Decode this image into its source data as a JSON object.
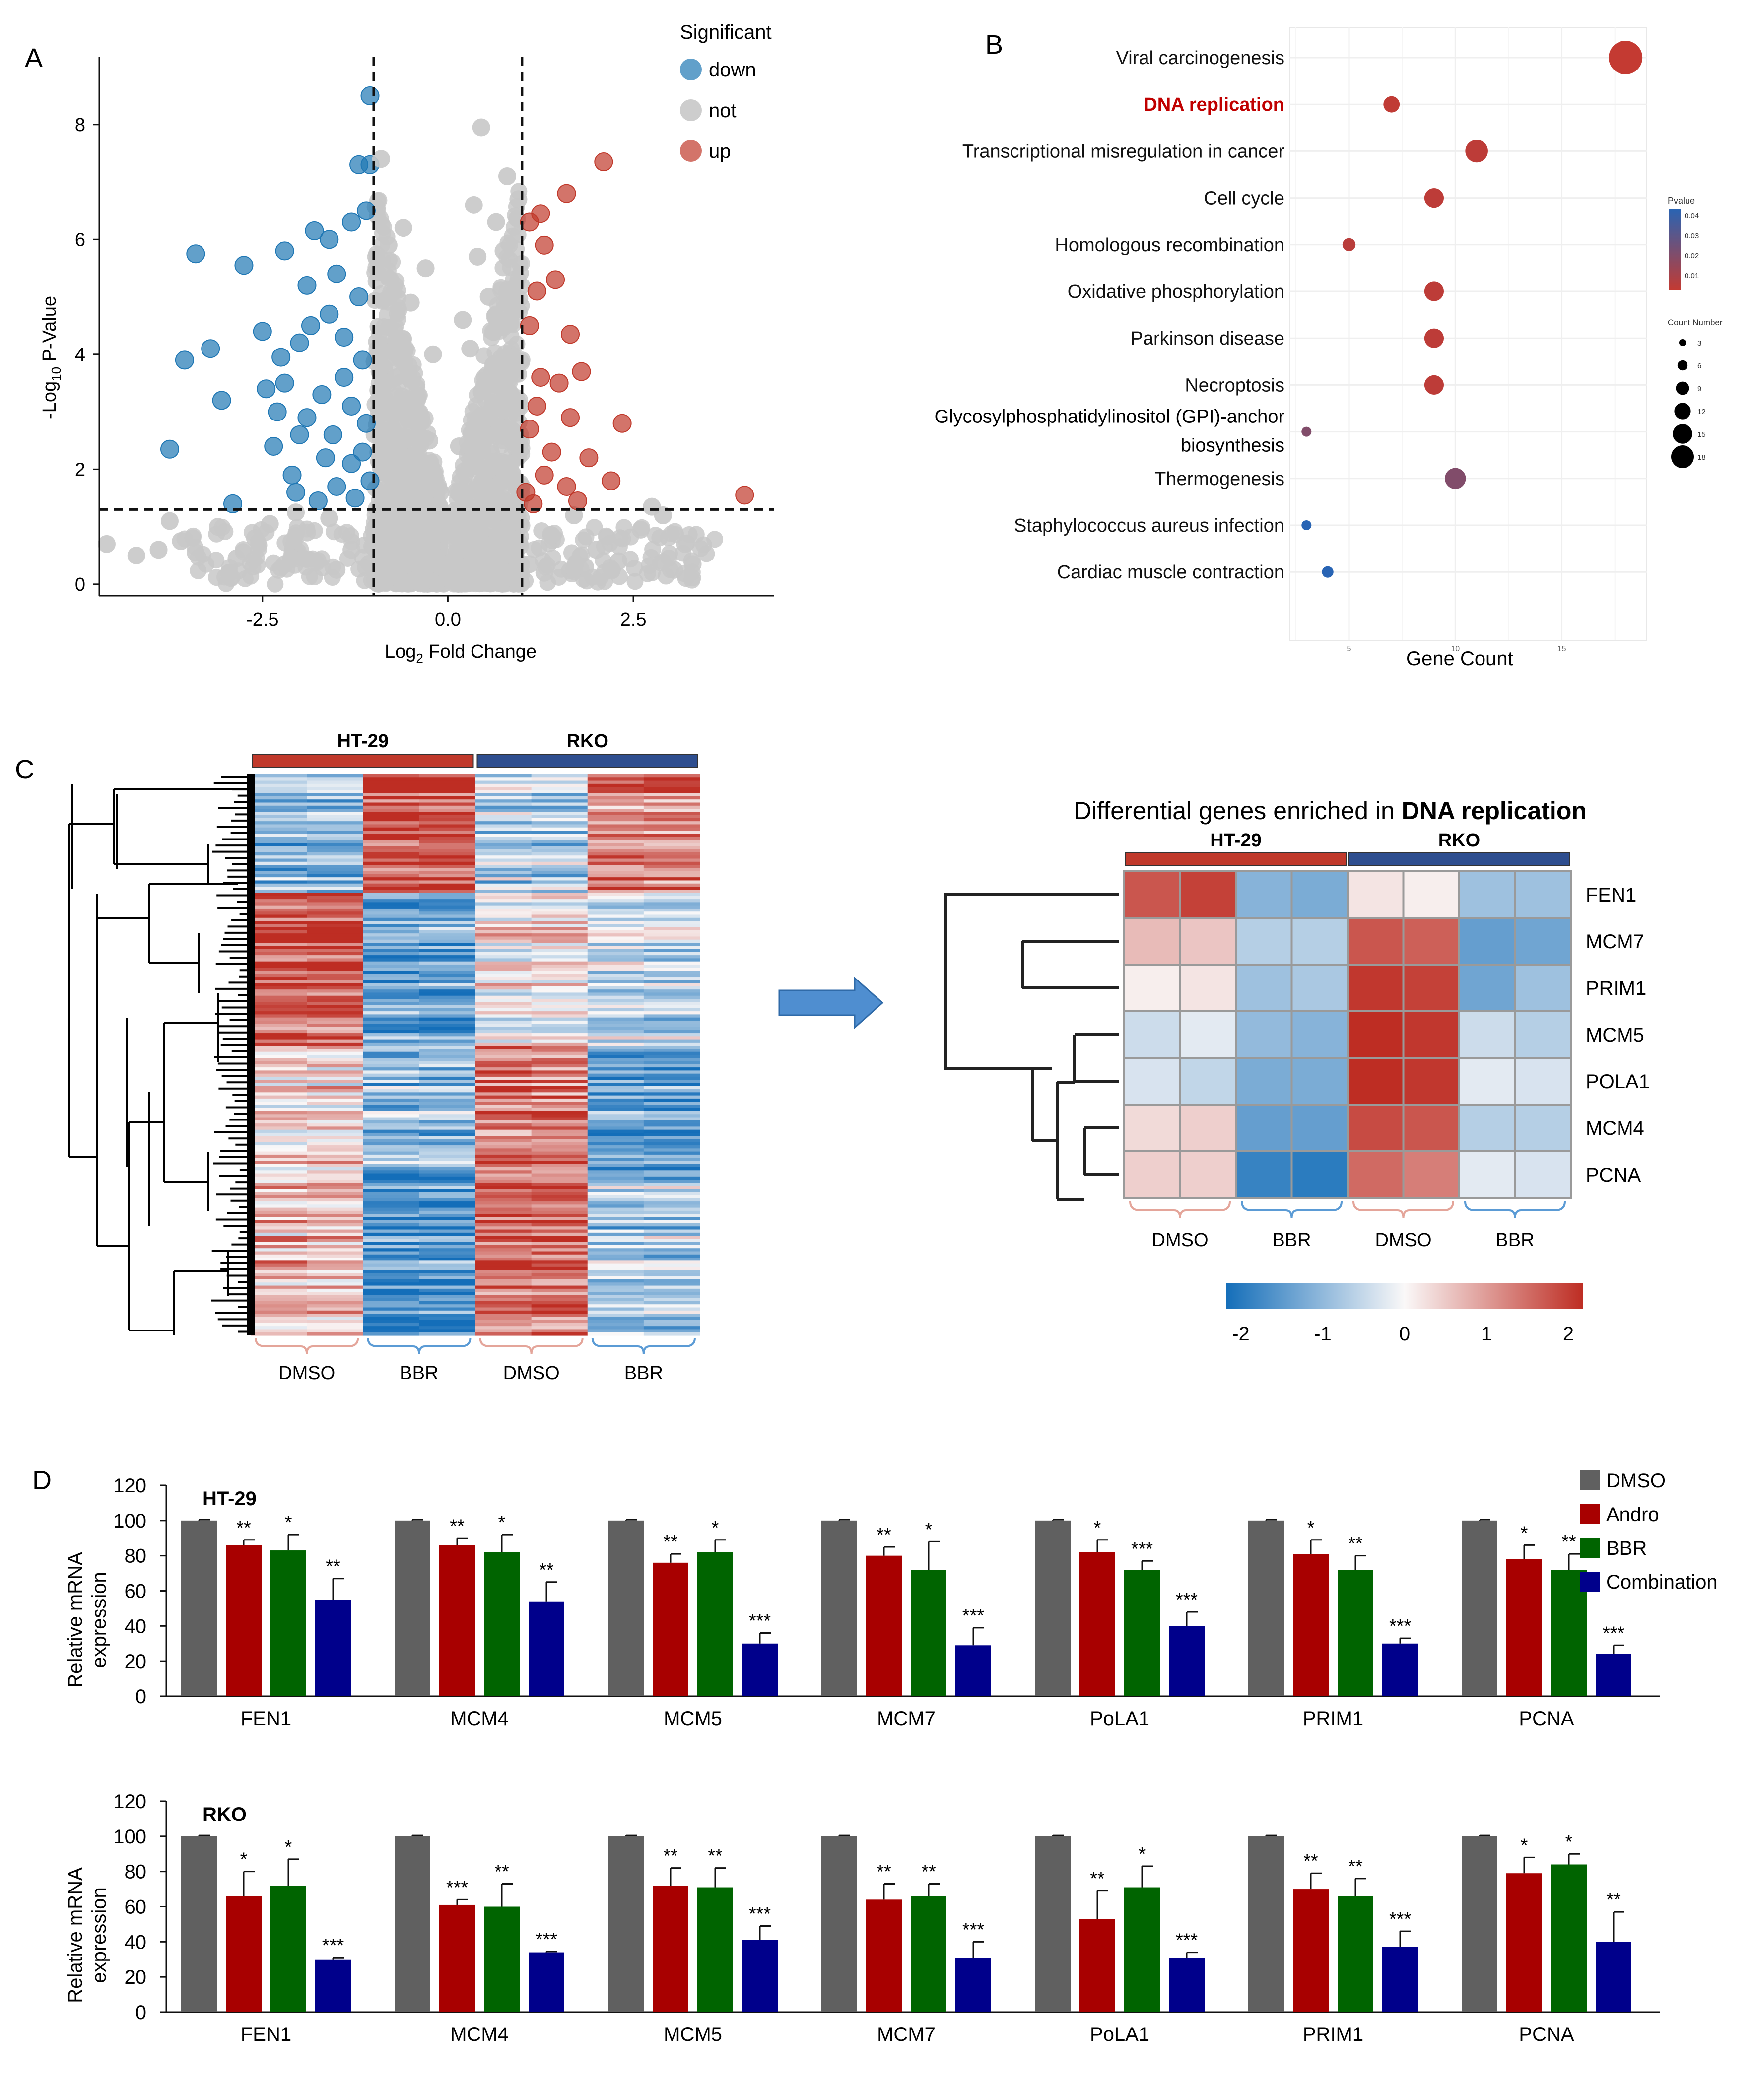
{
  "panels": {
    "a": "A",
    "b": "B",
    "c": "C",
    "d": "D"
  },
  "colors": {
    "down": "#1f77b4",
    "not": "#c8c8c8",
    "up": "#c0392b",
    "dmso": "#606060",
    "andro": "#a80000",
    "bbr": "#006400",
    "combination": "#00008b"
  },
  "chart_data": [
    {
      "id": "volcano",
      "type": "scatter",
      "xlabel": "Log2 Fold Change",
      "ylabel": "-Log10 P-Value",
      "x_ticks": [
        "-2.5",
        "0.0",
        "2.5"
      ],
      "y_ticks": [
        "0",
        "2",
        "4",
        "6",
        "8"
      ],
      "xlim": [
        -4.7,
        4.4
      ],
      "ylim": [
        -0.2,
        9.0
      ],
      "thresholds": {
        "x": [
          -1,
          1
        ],
        "y": 1.3
      },
      "legend": {
        "title": "Significant",
        "items": [
          "down",
          "not",
          "up"
        ],
        "position": "top-right"
      },
      "series": [
        {
          "name": "down",
          "color": "#1f77b4",
          "points": [
            [
              -1.05,
              8.5
            ],
            [
              -1.2,
              7.3
            ],
            [
              -1.05,
              7.3
            ],
            [
              -3.4,
              5.75
            ],
            [
              -2.75,
              5.55
            ],
            [
              -2.2,
              5.8
            ],
            [
              -1.8,
              6.15
            ],
            [
              -1.6,
              6.0
            ],
            [
              -1.3,
              6.3
            ],
            [
              -1.1,
              6.5
            ],
            [
              -3.2,
              4.1
            ],
            [
              -3.55,
              3.9
            ],
            [
              -2.5,
              4.4
            ],
            [
              -2.25,
              3.95
            ],
            [
              -2.0,
              4.2
            ],
            [
              -1.85,
              4.5
            ],
            [
              -1.6,
              4.7
            ],
            [
              -1.4,
              4.3
            ],
            [
              -1.2,
              5.0
            ],
            [
              -3.05,
              3.2
            ],
            [
              -2.45,
              3.4
            ],
            [
              -2.2,
              3.5
            ],
            [
              -1.7,
              3.3
            ],
            [
              -1.4,
              3.6
            ],
            [
              -1.15,
              3.9
            ],
            [
              -3.75,
              2.35
            ],
            [
              -2.35,
              2.4
            ],
            [
              -2.0,
              2.6
            ],
            [
              -1.65,
              2.2
            ],
            [
              -1.3,
              2.1
            ],
            [
              -1.1,
              2.8
            ],
            [
              -2.9,
              1.4
            ],
            [
              -2.05,
              1.6
            ],
            [
              -1.75,
              1.45
            ],
            [
              -1.5,
              1.7
            ],
            [
              -1.25,
              1.5
            ],
            [
              -1.05,
              1.8
            ],
            [
              -1.9,
              5.2
            ],
            [
              -1.5,
              5.4
            ],
            [
              -2.3,
              3.0
            ],
            [
              -1.9,
              2.9
            ],
            [
              -1.3,
              3.1
            ],
            [
              -1.55,
              2.6
            ],
            [
              -2.1,
              1.9
            ],
            [
              -1.15,
              2.3
            ]
          ]
        },
        {
          "name": "not",
          "color": "#c8c8c8",
          "points": [
            [
              -0.9,
              7.4
            ],
            [
              0.45,
              7.95
            ],
            [
              0.8,
              7.1
            ],
            [
              0.95,
              6.7
            ],
            [
              0.35,
              6.6
            ],
            [
              0.65,
              6.3
            ],
            [
              -0.6,
              6.2
            ],
            [
              -0.8,
              5.9
            ],
            [
              -0.3,
              5.5
            ],
            [
              0.4,
              5.7
            ],
            [
              0.75,
              5.8
            ],
            [
              -0.5,
              4.9
            ],
            [
              0.2,
              4.6
            ],
            [
              0.55,
              5.0
            ],
            [
              -0.2,
              4.0
            ],
            [
              0.3,
              4.1
            ],
            [
              -0.7,
              3.6
            ],
            [
              0.7,
              3.5
            ],
            [
              -0.4,
              3.0
            ],
            [
              0.5,
              2.9
            ],
            [
              -0.25,
              2.5
            ],
            [
              0.15,
              2.4
            ],
            [
              -0.6,
              2.0
            ],
            [
              0.85,
              2.1
            ],
            [
              -0.1,
              1.6
            ],
            [
              0.25,
              1.7
            ],
            [
              -4.6,
              0.7
            ],
            [
              -4.2,
              0.5
            ],
            [
              -3.9,
              0.6
            ],
            [
              -3.6,
              0.75
            ],
            [
              -3.4,
              0.55
            ],
            [
              -3.1,
              1.0
            ],
            [
              -2.85,
              0.45
            ],
            [
              -2.6,
              0.8
            ],
            [
              -2.4,
              1.05
            ],
            [
              -2.2,
              0.35
            ],
            [
              -1.9,
              0.9
            ],
            [
              -1.6,
              1.15
            ],
            [
              -1.3,
              0.6
            ],
            [
              -1.0,
              0.95
            ],
            [
              -0.7,
              0.4
            ],
            [
              -0.4,
              0.8
            ],
            [
              -0.1,
              0.3
            ],
            [
              0.2,
              0.7
            ],
            [
              0.5,
              0.5
            ],
            [
              0.8,
              1.0
            ],
            [
              1.1,
              0.35
            ],
            [
              1.4,
              0.85
            ],
            [
              1.7,
              1.2
            ],
            [
              2.0,
              0.6
            ],
            [
              2.3,
              0.4
            ],
            [
              2.6,
              0.95
            ],
            [
              2.9,
              1.2
            ],
            [
              3.2,
              0.7
            ],
            [
              3.3,
              0.35
            ],
            [
              2.75,
              1.35
            ],
            [
              -3.75,
              1.1
            ],
            [
              -2.05,
              1.25
            ],
            [
              1.85,
              0.3
            ],
            [
              -0.55,
              1.2
            ],
            [
              0.45,
              1.3
            ],
            [
              -1.5,
              0.25
            ],
            [
              1.3,
              0.2
            ],
            [
              -2.95,
              0.2
            ],
            [
              3.05,
              0.25
            ]
          ]
        },
        {
          "name": "up",
          "color": "#c0392b",
          "points": [
            [
              2.1,
              7.35
            ],
            [
              1.6,
              6.8
            ],
            [
              1.25,
              6.45
            ],
            [
              1.1,
              6.3
            ],
            [
              1.3,
              5.9
            ],
            [
              1.45,
              5.3
            ],
            [
              1.2,
              5.1
            ],
            [
              1.65,
              4.35
            ],
            [
              1.1,
              4.5
            ],
            [
              1.8,
              3.7
            ],
            [
              1.25,
              3.6
            ],
            [
              1.5,
              3.5
            ],
            [
              1.2,
              3.1
            ],
            [
              1.65,
              2.9
            ],
            [
              2.35,
              2.8
            ],
            [
              1.1,
              2.7
            ],
            [
              1.4,
              2.3
            ],
            [
              1.9,
              2.2
            ],
            [
              2.2,
              1.8
            ],
            [
              1.3,
              1.9
            ],
            [
              1.6,
              1.7
            ],
            [
              1.05,
              1.6
            ],
            [
              4.0,
              1.55
            ],
            [
              1.75,
              1.45
            ],
            [
              1.15,
              1.4
            ]
          ]
        }
      ]
    },
    {
      "id": "kegg",
      "type": "scatter",
      "xlabel": "Gene Count",
      "x_ticks": [
        "5",
        "10",
        "15"
      ],
      "xlim": [
        2.2,
        19.0
      ],
      "categories": [
        "Viral carcinogenesis",
        "DNA replication",
        "Transcriptional misregulation in cancer",
        "Cell cycle",
        "Homologous recombination",
        "Oxidative phosphorylation",
        "Parkinson disease",
        "Necroptosis",
        "Glycosylphosphatidylinositol (GPI)-anchor biosynthesis",
        "Thermogenesis",
        "Staphylococcus aureus infection",
        "Cardiac muscle contraction"
      ],
      "highlight": "DNA replication",
      "counts": [
        18,
        7,
        11,
        9,
        5,
        9,
        9,
        9,
        3,
        10,
        3,
        4
      ],
      "pvalues": [
        0.001,
        0.002,
        0.003,
        0.003,
        0.004,
        0.003,
        0.003,
        0.003,
        0.02,
        0.02,
        0.045,
        0.045
      ],
      "pvalue_legend": {
        "title": "Pvalue",
        "ticks": [
          "0.04",
          "0.03",
          "0.02",
          "0.01"
        ]
      },
      "size_legend": {
        "title": "Count Number",
        "ticks": [
          "3",
          "6",
          "9",
          "12",
          "15",
          "18"
        ]
      }
    },
    {
      "id": "heatmap-all",
      "type": "heatmap",
      "group_headers": [
        "HT-29",
        "RKO"
      ],
      "column_labels": [
        "DMSO",
        "BBR",
        "DMSO",
        "BBR"
      ],
      "n_columns": 8,
      "n_rows": 180
    },
    {
      "id": "heatmap-dna",
      "type": "heatmap",
      "title_prefix": "Differential genes enriched in ",
      "title_bold": "DNA replication",
      "group_headers": [
        "HT-29",
        "RKO"
      ],
      "column_labels": [
        "DMSO",
        "BBR",
        "DMSO",
        "BBR"
      ],
      "rows": [
        "FEN1",
        "MCM7",
        "PRIM1",
        "MCM5",
        "POLA1",
        "MCM4",
        "PCNA"
      ],
      "values": [
        [
          1.6,
          1.8,
          -1.0,
          -1.1,
          0.2,
          0.1,
          -0.8,
          -0.8
        ],
        [
          0.6,
          0.5,
          -0.6,
          -0.6,
          1.6,
          1.5,
          -1.3,
          -1.2
        ],
        [
          0.1,
          0.2,
          -0.8,
          -0.7,
          1.9,
          1.8,
          -1.2,
          -0.8
        ],
        [
          -0.4,
          -0.2,
          -0.9,
          -1.0,
          2.0,
          1.9,
          -0.4,
          -0.6
        ],
        [
          -0.3,
          -0.5,
          -1.1,
          -1.1,
          2.0,
          1.9,
          -0.2,
          -0.3
        ],
        [
          0.3,
          0.4,
          -1.3,
          -1.3,
          1.7,
          1.6,
          -0.6,
          -0.6
        ],
        [
          0.4,
          0.4,
          -1.7,
          -1.8,
          1.4,
          1.2,
          -0.2,
          -0.3
        ]
      ],
      "colorbar_ticks": [
        "-2",
        "-1",
        "0",
        "1",
        "2"
      ]
    },
    {
      "id": "qpcr-ht29",
      "type": "bar",
      "title": "HT-29",
      "ylabel": "Relative mRNA expression",
      "ylim": [
        0,
        120
      ],
      "y_ticks": [
        "0",
        "20",
        "40",
        "60",
        "80",
        "100",
        "120"
      ],
      "categories": [
        "FEN1",
        "MCM4",
        "MCM5",
        "MCM7",
        "PoLA1",
        "PRIM1",
        "PCNA"
      ],
      "series": [
        {
          "name": "DMSO",
          "values": [
            100,
            100,
            100,
            100,
            100,
            100,
            100
          ],
          "errors": [
            0.5,
            0.5,
            0.5,
            0.5,
            0.5,
            0.5,
            0.5
          ],
          "sig": [
            "",
            "",
            "",
            "",
            "",
            "",
            ""
          ]
        },
        {
          "name": "Andro",
          "values": [
            86,
            86,
            76,
            80,
            82,
            81,
            78
          ],
          "errors": [
            3,
            4,
            5,
            5,
            7,
            8,
            8
          ],
          "sig": [
            "**",
            "**",
            "**",
            "**",
            "*",
            "*",
            "*"
          ]
        },
        {
          "name": "BBR",
          "values": [
            83,
            82,
            82,
            72,
            72,
            72,
            72
          ],
          "errors": [
            9,
            10,
            7,
            16,
            5,
            8,
            9
          ],
          "sig": [
            "*",
            "*",
            "*",
            "*",
            "***",
            "**",
            "**"
          ]
        },
        {
          "name": "Combination",
          "values": [
            55,
            54,
            30,
            29,
            40,
            30,
            24
          ],
          "errors": [
            12,
            11,
            6,
            10,
            8,
            3,
            5
          ],
          "sig": [
            "**",
            "**",
            "***",
            "***",
            "***",
            "***",
            "***"
          ]
        }
      ],
      "legend": {
        "position": "top-right",
        "items": [
          "DMSO",
          "Andro",
          "BBR",
          "Combination"
        ]
      }
    },
    {
      "id": "qpcr-rko",
      "type": "bar",
      "title": "RKO",
      "ylabel": "Relative mRNA expression",
      "ylim": [
        0,
        120
      ],
      "y_ticks": [
        "0",
        "20",
        "40",
        "60",
        "80",
        "100",
        "120"
      ],
      "categories": [
        "FEN1",
        "MCM4",
        "MCM5",
        "MCM7",
        "PoLA1",
        "PRIM1",
        "PCNA"
      ],
      "series": [
        {
          "name": "DMSO",
          "values": [
            100,
            100,
            100,
            100,
            100,
            100,
            100
          ],
          "errors": [
            0.5,
            0.5,
            0.5,
            0.5,
            0.5,
            0.5,
            0.5
          ],
          "sig": [
            "",
            "",
            "",
            "",
            "",
            "",
            ""
          ]
        },
        {
          "name": "Andro",
          "values": [
            66,
            61,
            72,
            64,
            53,
            70,
            79
          ],
          "errors": [
            14,
            3,
            10,
            9,
            16,
            9,
            9
          ],
          "sig": [
            "*",
            "***",
            "**",
            "**",
            "**",
            "**",
            "*"
          ]
        },
        {
          "name": "BBR",
          "values": [
            72,
            60,
            71,
            66,
            71,
            66,
            84
          ],
          "errors": [
            15,
            13,
            11,
            7,
            12,
            10,
            6
          ],
          "sig": [
            "*",
            "**",
            "**",
            "**",
            "*",
            "**",
            "*"
          ]
        },
        {
          "name": "Combination",
          "values": [
            30,
            34,
            41,
            31,
            31,
            37,
            40
          ],
          "errors": [
            1,
            0.5,
            8,
            9,
            3,
            9,
            17
          ],
          "sig": [
            "***",
            "***",
            "***",
            "***",
            "***",
            "***",
            "**"
          ]
        }
      ]
    }
  ]
}
